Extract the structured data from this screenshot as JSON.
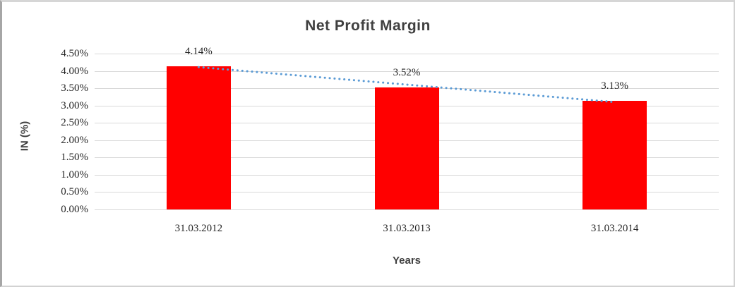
{
  "chart_data": {
    "type": "bar",
    "title": "Net Profit Margin",
    "xlabel": "Years",
    "ylabel": "IN (%)",
    "categories": [
      "31.03.2012",
      "31.03.2013",
      "31.03.2014"
    ],
    "values": [
      4.14,
      3.52,
      3.13
    ],
    "data_labels": [
      "4.14%",
      "3.52%",
      "3.13%"
    ],
    "ylim": [
      0,
      4.5
    ],
    "ytick_step": 0.5,
    "ytick_labels": [
      "0.00%",
      "0.50%",
      "1.00%",
      "1.50%",
      "2.00%",
      "2.50%",
      "3.00%",
      "3.50%",
      "4.00%",
      "4.50%"
    ],
    "grid": true,
    "legend": "none",
    "trendline": {
      "type": "linear",
      "style": "dotted",
      "from_value": 4.14,
      "to_value": 3.13,
      "color": "#5b9bd5"
    },
    "colors": {
      "bar": "#ff0000",
      "gridline": "#d9d9d9",
      "title_text": "#404040",
      "tick_text": "#262626"
    }
  }
}
